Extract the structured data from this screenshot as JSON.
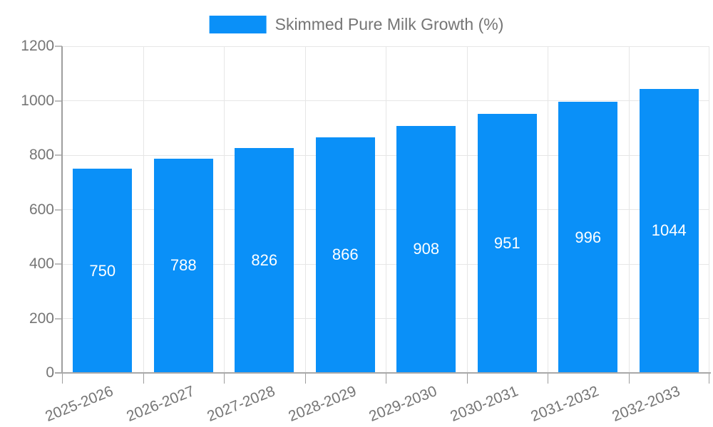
{
  "legend": {
    "label": "Skimmed Pure Milk Growth (%)"
  },
  "colors": {
    "bar": "#0a90f8",
    "axis_text": "#757575",
    "value_text": "#ffffff",
    "gridline": "#e6e6e6",
    "axis_line": "#9e9e9e",
    "background": "#ffffff"
  },
  "chart_data": {
    "type": "bar",
    "title": "",
    "categories": [
      "2025-2026",
      "2026-2027",
      "2027-2028",
      "2028-2029",
      "2029-2030",
      "2030-2031",
      "2031-2032",
      "2032-2033"
    ],
    "series": [
      {
        "name": "Skimmed Pure Milk Growth (%)",
        "values": [
          750,
          788,
          826,
          866,
          908,
          951,
          996,
          1044
        ]
      }
    ],
    "xlabel": "",
    "ylabel": "",
    "ylim": [
      0,
      1200
    ],
    "yticks": [
      0,
      200,
      400,
      600,
      800,
      1000,
      1200
    ],
    "grid": "horizontal and vertical category boundaries",
    "legend_position": "top-center",
    "value_labels": "white, centered inside bars",
    "bar_width_fraction": 0.73,
    "x_label_rotation_deg": -22
  }
}
